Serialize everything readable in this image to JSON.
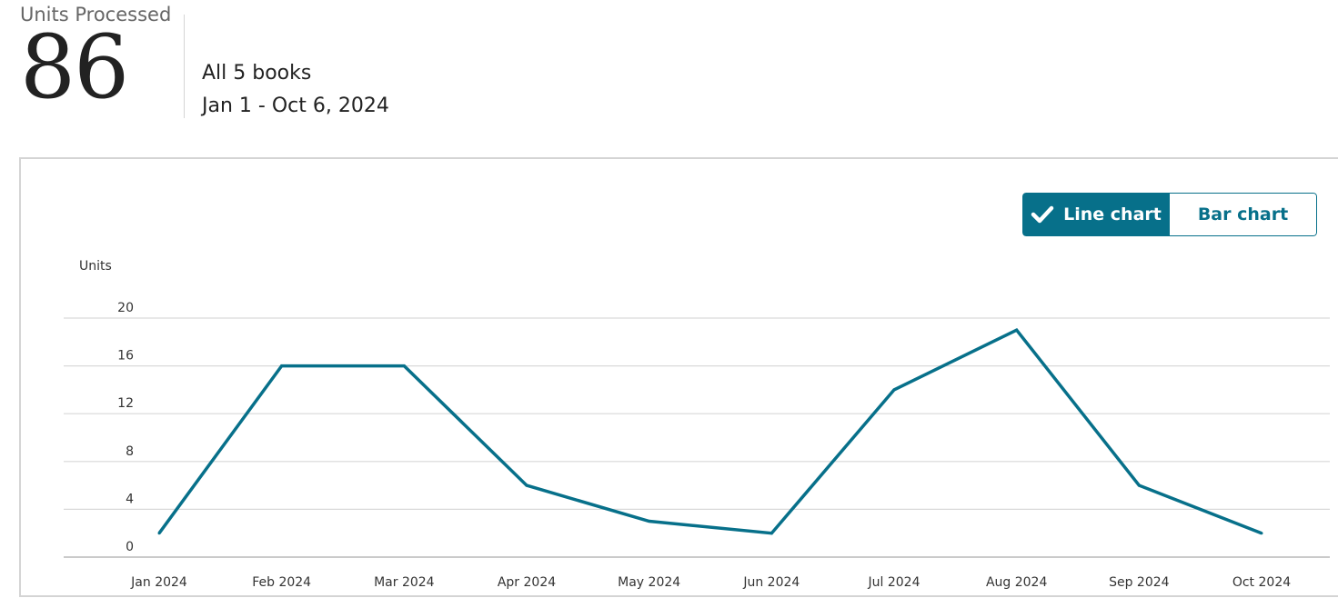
{
  "kpi": {
    "label": "Units Processed",
    "value": "86",
    "scope": "All 5 books",
    "date_range": "Jan 1 - Oct 6, 2024"
  },
  "chart_toggle": {
    "line_label": "Line chart",
    "bar_label": "Bar chart",
    "selected": "line"
  },
  "chart_data": {
    "type": "line",
    "ylabel": "Units",
    "xlabel": "",
    "title": "",
    "ylim": [
      0,
      20
    ],
    "yticks": [
      "0",
      "4",
      "8",
      "12",
      "16",
      "20"
    ],
    "categories": [
      "Jan 2024",
      "Feb 2024",
      "Mar 2024",
      "Apr 2024",
      "May 2024",
      "Jun 2024",
      "Jul 2024",
      "Aug 2024",
      "Sep 2024",
      "Oct 2024"
    ],
    "series": [
      {
        "values": [
          2,
          16,
          16,
          6,
          3,
          2,
          14,
          19,
          6,
          2
        ],
        "color": "#07708a"
      }
    ],
    "grid": true
  }
}
